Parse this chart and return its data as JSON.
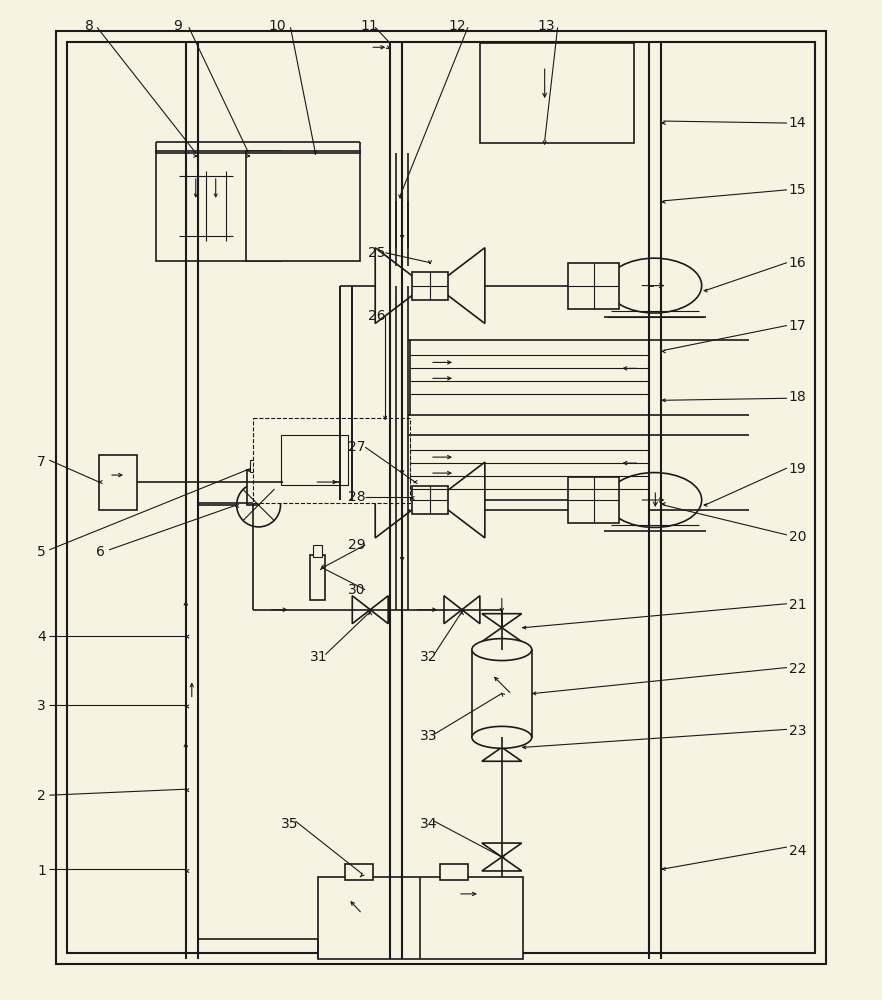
{
  "bg": "#f7f3e3",
  "fg": "#1a1a1a",
  "lw_main": 1.5,
  "lw_med": 1.2,
  "lw_thin": 0.8
}
